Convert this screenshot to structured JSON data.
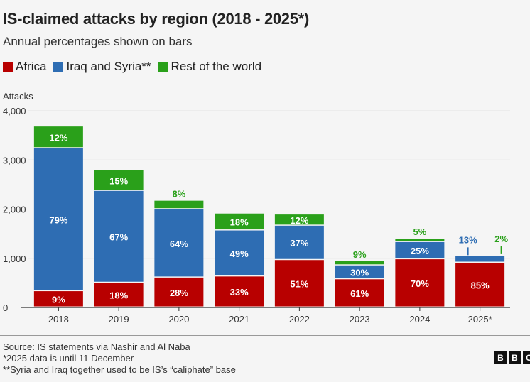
{
  "title": "IS-claimed attacks by region (2018 - 2025*)",
  "subtitle": "Annual percentages shown on bars",
  "footer": {
    "source": "Source: IS statements via Nashir and Al Naba",
    "note1": "*2025 data is until 11 December",
    "note2": "**Syria and Iraq together used to be IS’s “caliphate” base"
  },
  "logo": "BBC",
  "chart_data": {
    "type": "bar",
    "stacked": true,
    "title": "IS-claimed attacks by region (2018 - 2025*)",
    "ylabel": "Attacks",
    "ylim": [
      0,
      4000
    ],
    "yticks": [
      0,
      1000,
      2000,
      3000,
      4000
    ],
    "ytick_labels": [
      "0",
      "1,000",
      "2,000",
      "3,000",
      "4,000"
    ],
    "grid": true,
    "legend": "top",
    "categories": [
      "2018",
      "2019",
      "2020",
      "2021",
      "2022",
      "2023",
      "2024",
      "2025*"
    ],
    "series": [
      {
        "name": "Africa",
        "color": "#b80000",
        "values": [
          331,
          502,
          608,
          630,
          964,
          573,
          980,
          910
        ],
        "labels": [
          "9%",
          "18%",
          "28%",
          "33%",
          "51%",
          "61%",
          "70%",
          "85%"
        ]
      },
      {
        "name": "Iraq and Syria**",
        "color": "#2e6db3",
        "values": [
          2907,
          1869,
          1389,
          936,
          699,
          282,
          350,
          139
        ],
        "labels": [
          "79%",
          "67%",
          "64%",
          "49%",
          "37%",
          "30%",
          "25%",
          "13%"
        ]
      },
      {
        "name": "Rest of the world",
        "color": "#2aa01a",
        "values": [
          442,
          419,
          174,
          344,
          227,
          85,
          70,
          21
        ],
        "labels": [
          "12%",
          "15%",
          "8%",
          "18%",
          "12%",
          "9%",
          "5%",
          "2%"
        ]
      }
    ]
  }
}
